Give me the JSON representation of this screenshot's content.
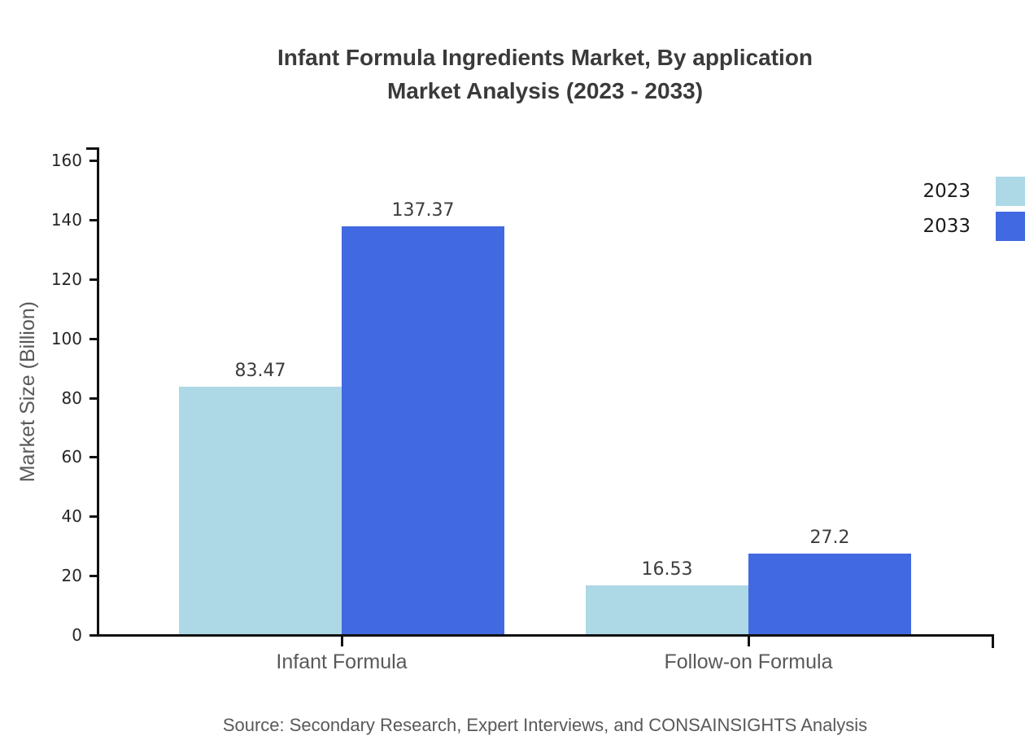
{
  "title": {
    "line1": "Infant Formula Ingredients Market, By application",
    "line2": "Market Analysis (2023 - 2033)"
  },
  "source": "Source: Secondary Research, Expert Interviews, and CONSAINSIGHTS Analysis",
  "chart_data": {
    "type": "bar",
    "title": "Infant Formula Ingredients Market, By application Market Analysis (2023 - 2033)",
    "categories": [
      "Infant Formula",
      "Follow-on Formula"
    ],
    "series": [
      {
        "name": "2023",
        "color": "#ADD8E6",
        "values": [
          83.47,
          16.53
        ]
      },
      {
        "name": "2033",
        "color": "#4169E1",
        "values": [
          137.37,
          27.2
        ]
      }
    ],
    "value_labels": [
      [
        "83.47",
        "16.53"
      ],
      [
        "137.37",
        "27.2"
      ]
    ],
    "xlabel": "",
    "ylabel": "Market Size (Billion)",
    "ylim": [
      0,
      160
    ],
    "yticks": [
      0,
      20,
      40,
      60,
      80,
      100,
      120,
      140,
      160
    ],
    "grid": false,
    "legend_position": "upper-right-outside"
  },
  "legend": {
    "items": [
      {
        "label": "2023",
        "color": "#ADD8E6"
      },
      {
        "label": "2033",
        "color": "#4169E1"
      }
    ]
  },
  "colors": {
    "series_2023": "#ADD8E6",
    "series_2033": "#4169E1",
    "axis": "#111111",
    "title_text": "#3a3a3a",
    "tick_text": "#262626",
    "muted_text": "#595959",
    "background": "#ffffff"
  }
}
